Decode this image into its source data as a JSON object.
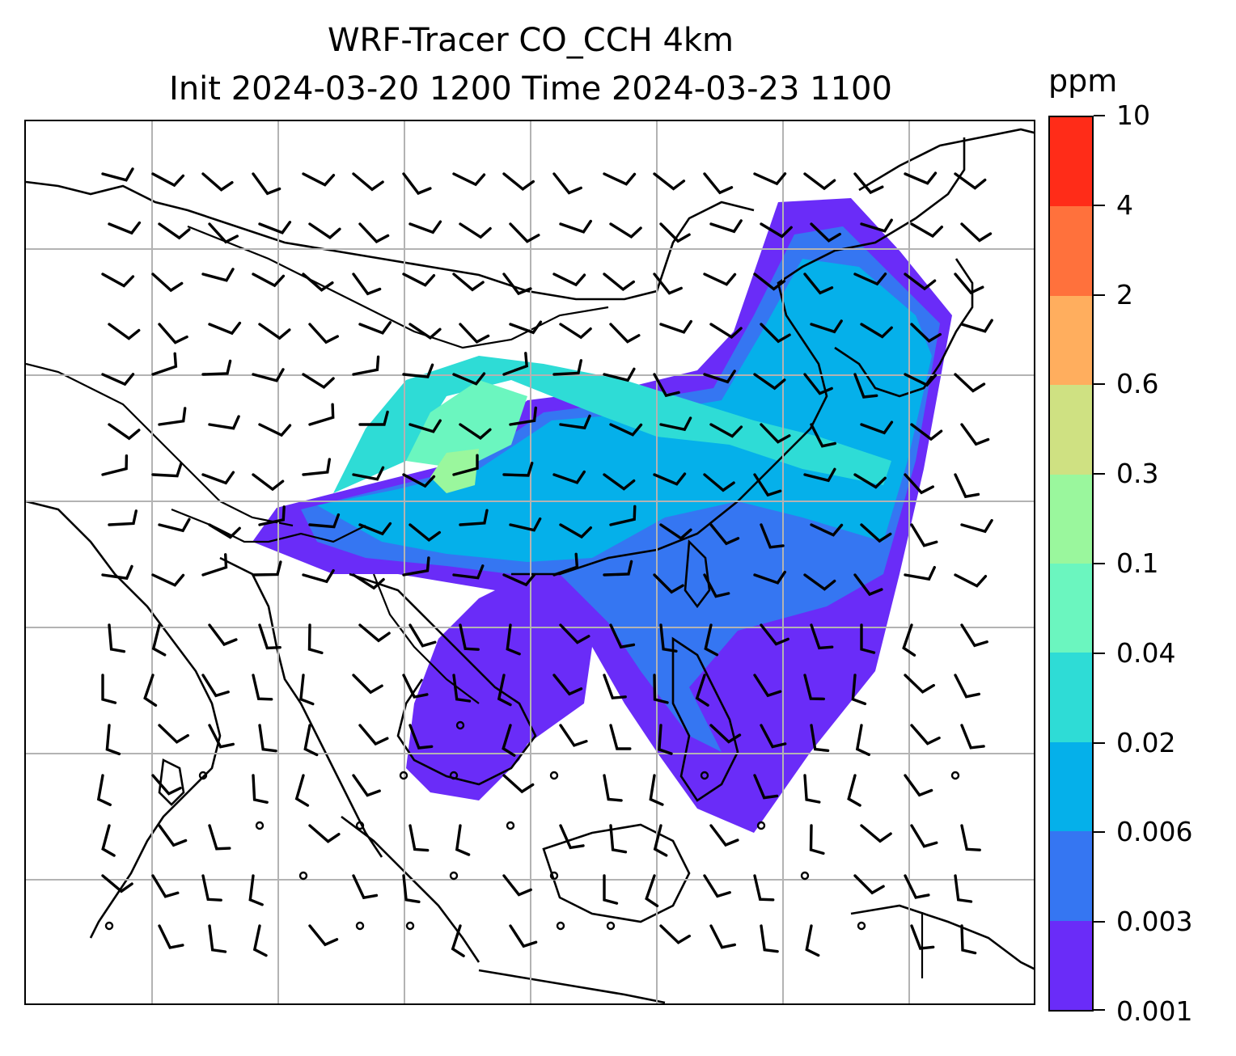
{
  "title": {
    "line1": "WRF-Tracer CO_CCH 4km",
    "line2": "Init 2024-03-20 1200 Time 2024-03-23 1100"
  },
  "colorbar": {
    "unit": "ppm",
    "ticks": [
      "0.001",
      "0.003",
      "0.006",
      "0.02",
      "0.04",
      "0.1",
      "0.3",
      "0.6",
      "2",
      "4",
      "10"
    ],
    "colors": [
      "#6a2cf8",
      "#3576f2",
      "#05b0ea",
      "#2edcd6",
      "#6bf6bf",
      "#9af79d",
      "#cfe182",
      "#ffae5e",
      "#ff713c",
      "#ff2c18"
    ]
  },
  "map": {
    "gridlines": true,
    "wind_barbs": true,
    "coastlines": true
  }
}
